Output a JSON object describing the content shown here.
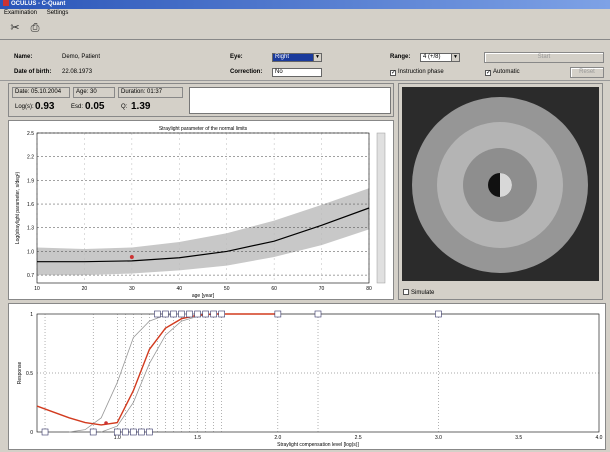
{
  "window": {
    "title": "OCULUS - C-Quant"
  },
  "menu": [
    "Examination",
    "Settings"
  ],
  "patient": {
    "name_label": "Name:",
    "name": "Demo, Patient",
    "dob_label": "Date of birth:",
    "dob": "22.08.1973"
  },
  "exam": {
    "eye_label": "Eye:",
    "eye": "Right",
    "correction_label": "Correction:",
    "correction": "No",
    "range_label": "Range:",
    "range": "4 (+/8)",
    "instruction_label": "Instruction phase",
    "instruction_checked": true,
    "automatic_label": "Automatic",
    "automatic_checked": true,
    "start_label": "Start",
    "reset_label": "Reset"
  },
  "result": {
    "date_label": "Date:",
    "date": "05.10.2004",
    "age_label": "Age:",
    "age": "30",
    "duration_label": "Duration:",
    "duration": "01:37",
    "logst_label": "Log(s):",
    "logst": "0.93",
    "esd_label": "Esd:",
    "esd": "0.05",
    "q_label": "Q:",
    "q": "1.39"
  },
  "simulate_label": "Simulate",
  "colors": {
    "accent": "#c33",
    "normal_band": "#c8c8c8",
    "median_line": "#000",
    "fit_curve": "#d23b1f",
    "stimulus_outer": "#969696",
    "stimulus_ring": "#b4b4b4"
  },
  "chart_data": [
    {
      "type": "line",
      "title": "Straylight parameter of the normal limits",
      "xlabel": "age [year]",
      "ylabel": "Log(straylight parameter, s/deg²)",
      "xlim": [
        10,
        80
      ],
      "ylim": [
        0.6,
        2.5
      ],
      "x_ticks": [
        10,
        20,
        30,
        40,
        50,
        60,
        70,
        80
      ],
      "y_ticks": [
        0.7,
        1.0,
        1.3,
        1.6,
        1.9,
        2.2,
        2.5
      ],
      "grid": true,
      "median": {
        "x": [
          10,
          20,
          30,
          40,
          50,
          60,
          70,
          80
        ],
        "y": [
          0.87,
          0.87,
          0.88,
          0.92,
          1.0,
          1.13,
          1.33,
          1.55
        ]
      },
      "band_upper": [
        1.05,
        1.03,
        1.05,
        1.12,
        1.23,
        1.39,
        1.59,
        1.8
      ],
      "band_lower": [
        0.7,
        0.7,
        0.72,
        0.76,
        0.82,
        0.93,
        1.08,
        1.28
      ],
      "patient_point": {
        "x": 30,
        "y": 0.93
      }
    },
    {
      "type": "line",
      "title": "",
      "xlabel": "Straylight compensation level [log(s)]",
      "ylabel": "Response",
      "xlim": [
        0.5,
        4.0
      ],
      "ylim": [
        0,
        1
      ],
      "x_ticks": [
        1.0,
        1.5,
        2.0,
        2.5,
        3.0,
        3.5,
        4.0
      ],
      "x_tick_labels": [
        "1.0",
        "1.5",
        "2.0",
        "2.5",
        "3.0",
        "3.5",
        "4.0"
      ],
      "y_ticks": [
        0,
        0.5,
        1
      ],
      "y_tick_labels": [
        "0",
        "0.5",
        "1"
      ],
      "fit": {
        "x": [
          0.5,
          0.6,
          0.7,
          0.8,
          0.9,
          1.0,
          1.1,
          1.2,
          1.3,
          1.4,
          1.5,
          1.6,
          1.8,
          2.0
        ],
        "y": [
          0.22,
          0.17,
          0.12,
          0.08,
          0.06,
          0.08,
          0.35,
          0.7,
          0.88,
          0.96,
          0.99,
          1.0,
          1.0,
          1.0
        ]
      },
      "confidence_low": {
        "x": [
          0.9,
          1.0,
          1.1,
          1.2,
          1.3,
          1.4,
          1.5,
          1.6,
          1.8
        ],
        "y": [
          0.0,
          0.05,
          0.25,
          0.58,
          0.82,
          0.94,
          0.98,
          1.0,
          1.0
        ]
      },
      "confidence_high": {
        "x": [
          0.7,
          0.8,
          0.9,
          1.0,
          1.1,
          1.2,
          1.3,
          1.4,
          1.6
        ],
        "y": [
          0.0,
          0.02,
          0.12,
          0.42,
          0.8,
          0.94,
          0.99,
          1.0,
          1.0
        ]
      },
      "responses_top": [
        1.25,
        1.3,
        1.35,
        1.4,
        1.45,
        1.5,
        1.55,
        1.6,
        1.65,
        2.0,
        2.25,
        3.0
      ],
      "responses_bottom": [
        0.55,
        0.85,
        1.0,
        1.05,
        1.1,
        1.15,
        1.2
      ],
      "threshold": 0.93
    }
  ]
}
